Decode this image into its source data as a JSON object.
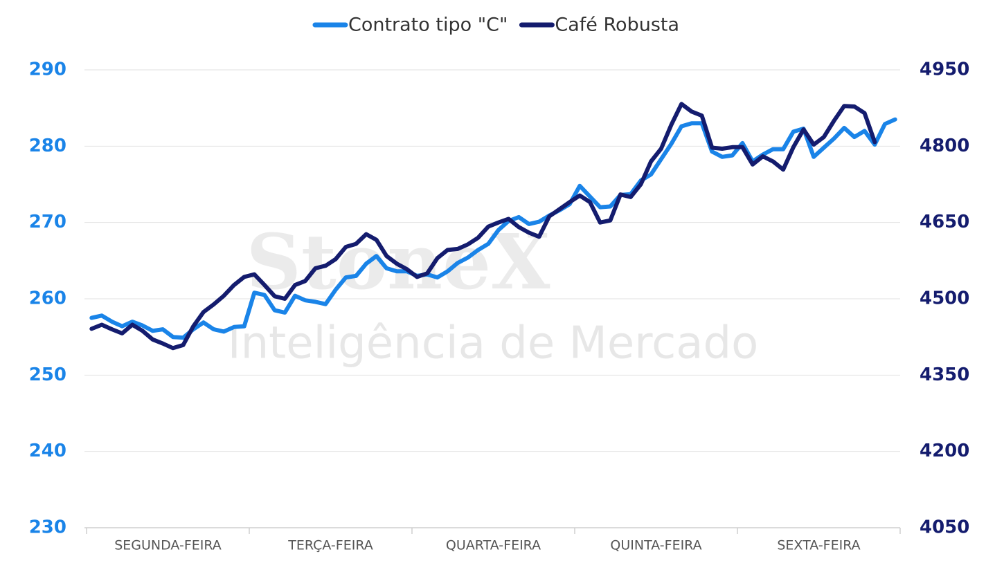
{
  "chart_data": {
    "type": "line",
    "watermark": {
      "brand": "StoneX",
      "tagline": "Inteligência de Mercado"
    },
    "categories": [
      null,
      null,
      null,
      null,
      null,
      null,
      null,
      null,
      "SEGUNDA-FEIRA",
      null,
      null,
      null,
      null,
      null,
      null,
      null,
      null,
      null,
      null,
      null,
      null,
      null,
      null,
      null,
      "TERÇA-FEIRA",
      null,
      null,
      null,
      null,
      null,
      null,
      null,
      null,
      null,
      null,
      null,
      null,
      null,
      null,
      null,
      "QUARTA-FEIRA",
      null,
      null,
      null,
      null,
      null,
      null,
      null,
      null,
      null,
      null,
      null,
      null,
      null,
      null,
      null,
      "QUINTA-FEIRA",
      null,
      null,
      null,
      null,
      null,
      null,
      null,
      null,
      null,
      null,
      null,
      null,
      null,
      null,
      null,
      "SEXTA-FEIRA",
      null,
      null,
      null,
      null,
      null,
      null,
      null
    ],
    "series": [
      {
        "name": "Contrato tipo \"C\"",
        "color": "#1a84e8",
        "values": [
          257.5,
          257.8,
          257.0,
          256.4,
          257.0,
          256.5,
          255.8,
          256.0,
          255.0,
          254.9,
          256.0,
          256.9,
          256.0,
          255.7,
          256.3,
          256.4,
          260.8,
          260.5,
          258.5,
          258.2,
          260.4,
          259.8,
          259.6,
          259.3,
          261.2,
          262.8,
          263.0,
          264.6,
          265.6,
          264.0,
          263.6,
          263.6,
          263.0,
          263.2,
          262.8,
          263.6,
          264.7,
          265.4,
          266.4,
          267.2,
          269.0,
          270.2,
          270.7,
          269.8,
          270.1,
          270.9,
          271.6,
          272.4,
          274.8,
          273.4,
          272.0,
          272.1,
          273.6,
          273.7,
          275.5,
          276.3,
          278.3,
          280.3,
          282.6,
          283.0,
          283.0,
          279.3,
          278.6,
          278.8,
          280.4,
          278.0,
          278.9,
          279.6,
          279.6,
          281.9,
          282.3,
          278.6,
          279.8,
          281.0,
          282.4,
          281.2,
          282.0,
          280.2,
          282.9,
          283.5
        ]
      },
      {
        "name": "Café Robusta",
        "color": "#141c6e",
        "axis": "y2",
        "values": [
          4441,
          4449,
          4440,
          4432,
          4449,
          4437,
          4420,
          4412,
          4403,
          4409,
          4446,
          4474,
          4489,
          4506,
          4527,
          4543,
          4548,
          4527,
          4505,
          4500,
          4527,
          4535,
          4560,
          4565,
          4578,
          4602,
          4608,
          4627,
          4616,
          4584,
          4569,
          4558,
          4543,
          4550,
          4580,
          4596,
          4598,
          4607,
          4620,
          4642,
          4650,
          4657,
          4641,
          4630,
          4622,
          4662,
          4676,
          4690,
          4703,
          4690,
          4650,
          4654,
          4705,
          4700,
          4725,
          4770,
          4795,
          4842,
          4883,
          4868,
          4860,
          4797,
          4795,
          4798,
          4798,
          4764,
          4780,
          4770,
          4754,
          4798,
          4833,
          4803,
          4818,
          4850,
          4879,
          4878,
          4865,
          4808,
          null,
          null
        ]
      }
    ],
    "ylim": [
      230,
      290
    ],
    "yticks": [
      230,
      240,
      250,
      260,
      270,
      280,
      290
    ],
    "y2lim": [
      4050,
      4950
    ],
    "y2ticks": [
      4050,
      4200,
      4350,
      4500,
      4650,
      4800,
      4950
    ],
    "grid": true,
    "legend": "top"
  }
}
